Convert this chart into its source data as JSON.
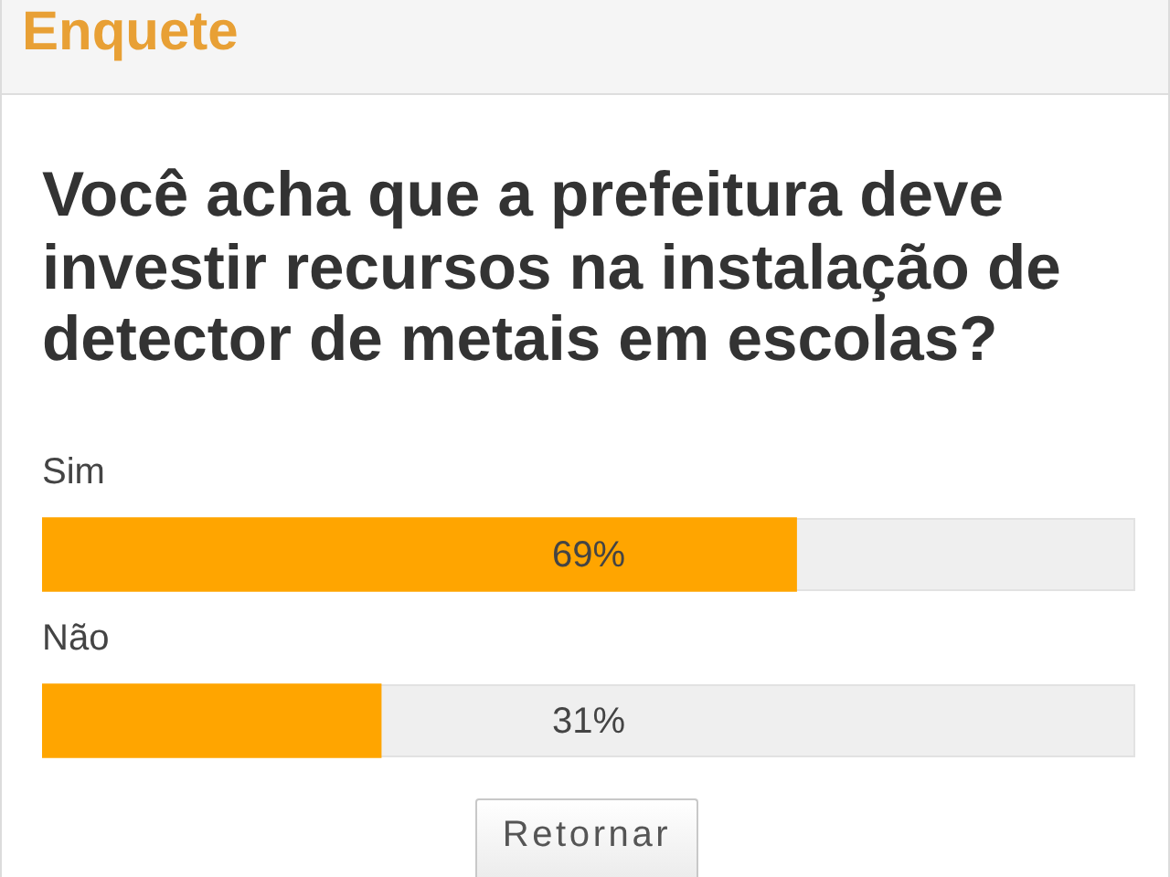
{
  "chart_data": {
    "type": "bar",
    "orientation": "horizontal",
    "title": "Enquete",
    "subtitle": "Você acha que a prefeitura deve investir recursos na instalação de detector de metais em escolas?",
    "categories": [
      "Sim",
      "Não"
    ],
    "values": [
      69,
      31
    ],
    "color": "#ffa500",
    "xlim": [
      0,
      100
    ],
    "value_labels": [
      "69%",
      "31%"
    ],
    "tick_labels": "y",
    "annotations": [
      "Retornar"
    ]
  }
}
